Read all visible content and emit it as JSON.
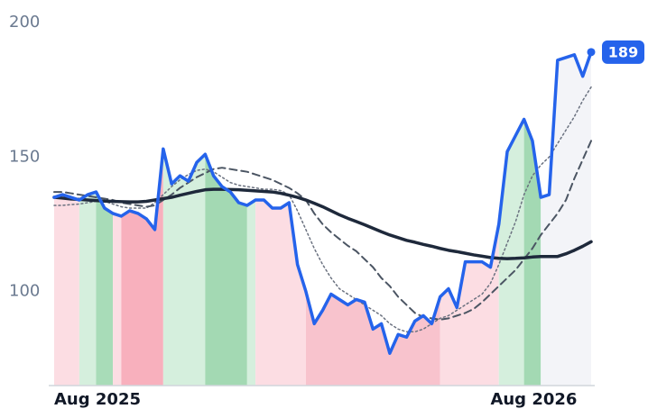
{
  "chart_data": {
    "type": "line",
    "categories": [
      "Aug 2025",
      null,
      null,
      null,
      null,
      null,
      null,
      null,
      null,
      null,
      null,
      null,
      null,
      null,
      null,
      null,
      null,
      null,
      null,
      null,
      null,
      null,
      null,
      null,
      null,
      null,
      null,
      null,
      null,
      null,
      null,
      null,
      null,
      null,
      null,
      null,
      null,
      null,
      null,
      null,
      null,
      null,
      null,
      null,
      null,
      null,
      null,
      null,
      null,
      null,
      null,
      null,
      "Aug 2026",
      null,
      null,
      null,
      null,
      null,
      null,
      null,
      null,
      null,
      null,
      null,
      null
    ],
    "series": [
      {
        "color": "#2563eb",
        "width": 3.5,
        "dash": "none",
        "label_last": true,
        "values": [
          135,
          136,
          135,
          134,
          136,
          137,
          131,
          129,
          128,
          130,
          129,
          127,
          123,
          153,
          140,
          143,
          141,
          148,
          151,
          143,
          139,
          137,
          133,
          132,
          134,
          134,
          131,
          131,
          133,
          110,
          100,
          88,
          93,
          99,
          97,
          95,
          97,
          96,
          86,
          88,
          77,
          84,
          83,
          89,
          91,
          88,
          98,
          101,
          94,
          111,
          111,
          111,
          109,
          125,
          152,
          158,
          164,
          156,
          135,
          136,
          186,
          187,
          188,
          180,
          189
        ]
      },
      {
        "color": "#1e293b",
        "width": 3.5,
        "dash": "none",
        "values": [
          135,
          134.7,
          134.4,
          134.2,
          134,
          133.8,
          133.6,
          133.5,
          133.4,
          133.3,
          133.3,
          133.5,
          134,
          134.5,
          135,
          135.8,
          136.5,
          137.2,
          137.8,
          138,
          138,
          137.9,
          137.8,
          137.6,
          137.4,
          137.2,
          137,
          136.5,
          135.8,
          135,
          134,
          132.8,
          131.5,
          130,
          128.5,
          127.2,
          126,
          124.8,
          123.5,
          122.2,
          121,
          120,
          119,
          118.3,
          117.5,
          116.8,
          116,
          115.3,
          114.8,
          114.2,
          113.6,
          113.1,
          112.6,
          112.3,
          112.2,
          112.3,
          112.5,
          112.8,
          113,
          113,
          113,
          114,
          115.3,
          116.8,
          118.5
        ]
      },
      {
        "color": "#4b5563",
        "width": 2,
        "dash": "8,5",
        "values": [
          137,
          137,
          136.5,
          136,
          135.5,
          135,
          134.5,
          134,
          133,
          132.5,
          132,
          131.5,
          132,
          134,
          136,
          138.5,
          140.5,
          142.5,
          144,
          145.5,
          146,
          145.5,
          145,
          144.5,
          143.5,
          142.5,
          141.5,
          140,
          138.5,
          136.5,
          134,
          129,
          125,
          122,
          119.5,
          117,
          115,
          112,
          109,
          105,
          102,
          98,
          95,
          92,
          90.5,
          90,
          89.5,
          90,
          91,
          92,
          93.5,
          96,
          99,
          102,
          105,
          108,
          112,
          116,
          121,
          125,
          129,
          134,
          142,
          149,
          156
        ]
      },
      {
        "color": "#6b7280",
        "width": 1.5,
        "dash": "2,3",
        "values": [
          132,
          132,
          132.3,
          132.5,
          133,
          133.5,
          133.5,
          132.5,
          131.5,
          131,
          131,
          131,
          133,
          136,
          139,
          141.5,
          143.5,
          145,
          145.5,
          144.5,
          142.5,
          140.5,
          139.5,
          139,
          138.5,
          138,
          138,
          137.5,
          136,
          130,
          123,
          116,
          110,
          105,
          101,
          99,
          97,
          95,
          93,
          91,
          88,
          86,
          85,
          85,
          86,
          88,
          90,
          91,
          93,
          95,
          97,
          99,
          103,
          110,
          118,
          126,
          136,
          143,
          147,
          150,
          155,
          160,
          165,
          171,
          176
        ]
      }
    ],
    "bands": [
      {
        "start": 0,
        "end": 3,
        "color": "#fcdde3"
      },
      {
        "start": 3,
        "end": 5,
        "color": "#d5efdd"
      },
      {
        "start": 5,
        "end": 7,
        "color": "#a8dcb8"
      },
      {
        "start": 7,
        "end": 8,
        "color": "#fcdde3"
      },
      {
        "start": 8,
        "end": 13,
        "color": "#f8b0bd"
      },
      {
        "start": 13,
        "end": 18,
        "color": "#d5efdd"
      },
      {
        "start": 18,
        "end": 23,
        "color": "#a3d9b3"
      },
      {
        "start": 23,
        "end": 24,
        "color": "#d5efdd"
      },
      {
        "start": 24,
        "end": 30,
        "color": "#fcdde3"
      },
      {
        "start": 30,
        "end": 46,
        "color": "#f8c3cd"
      },
      {
        "start": 46,
        "end": 53,
        "color": "#fcdde3"
      },
      {
        "start": 53,
        "end": 56,
        "color": "#d5efdd"
      },
      {
        "start": 56,
        "end": 58,
        "color": "#a3d9b3"
      },
      {
        "start": 58,
        "end": 64,
        "color": "#f3f4f8"
      }
    ],
    "ylim": [
      65,
      200
    ],
    "yticks": [
      100,
      150,
      200
    ],
    "grid": false
  }
}
